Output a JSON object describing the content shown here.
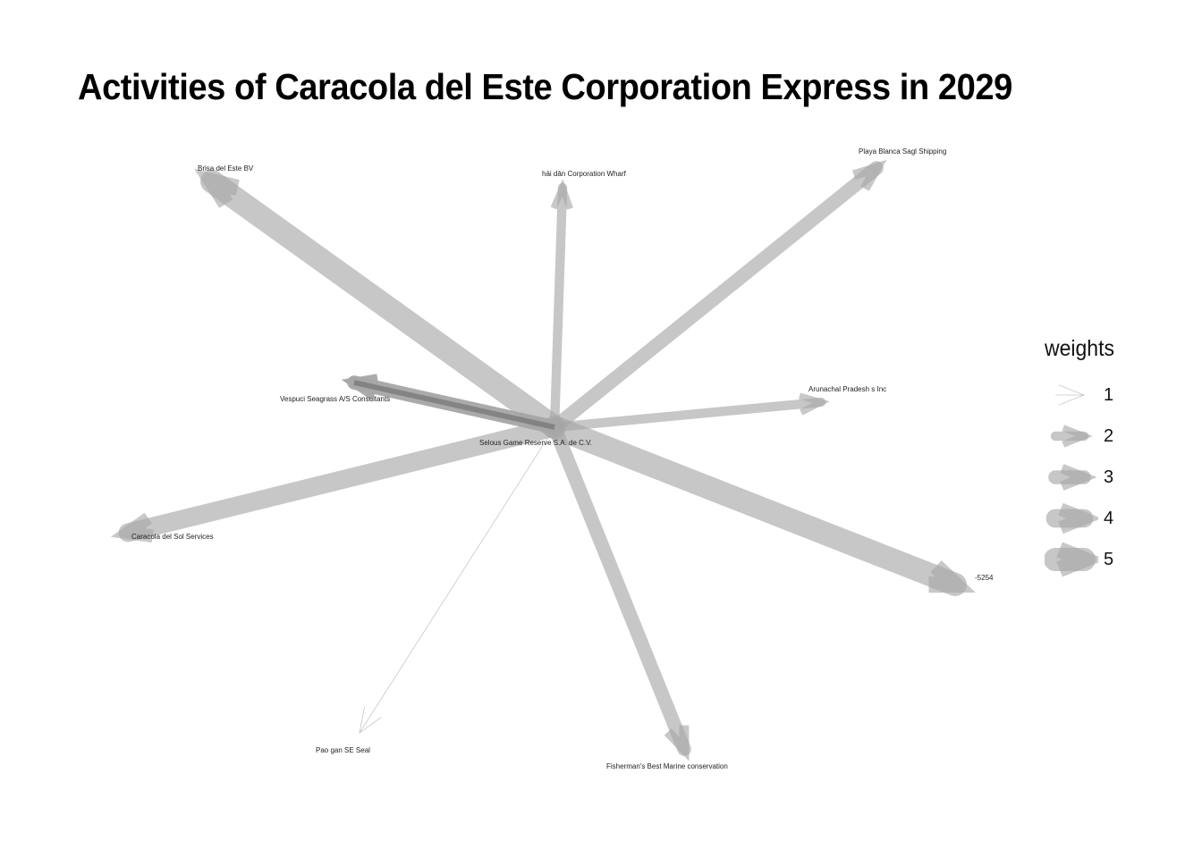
{
  "title": "Activities of Caracola del Este Corporation Express in 2029",
  "legend": {
    "title": "weights",
    "items": [
      {
        "label": "1",
        "weight": 1
      },
      {
        "label": "2",
        "weight": 2
      },
      {
        "label": "3",
        "weight": 3
      },
      {
        "label": "4",
        "weight": 4
      },
      {
        "label": "5",
        "weight": 5
      }
    ]
  },
  "graph": {
    "center": "Selous Game Reserve  S.A. de C.V.",
    "nodes": [
      {
        "id": "Selous Game Reserve  S.A. de C.V."
      },
      {
        "id": "Brisa del Este BV"
      },
      {
        "id": "hải dân Corporation Wharf"
      },
      {
        "id": "Playa Blanca Sagl Shipping"
      },
      {
        "id": "Arunachal Pradesh s Inc"
      },
      {
        "id": "Vespuci Seagrass A/S Consultants"
      },
      {
        "id": "Caracola del Sol Services"
      },
      {
        "id": "-5254"
      },
      {
        "id": "Pao gan SE Seal"
      },
      {
        "id": "Fisherman's Best Marine conservation"
      }
    ],
    "edges": [
      {
        "from": "Selous Game Reserve  S.A. de C.V.",
        "to": "Brisa del Este BV",
        "weight": 5
      },
      {
        "from": "Selous Game Reserve  S.A. de C.V.",
        "to": "-5254",
        "weight": 5
      },
      {
        "from": "Selous Game Reserve  S.A. de C.V.",
        "to": "Caracola del Sol Services",
        "weight": 4
      },
      {
        "from": "Selous Game Reserve  S.A. de C.V.",
        "to": "Playa Blanca Sagl Shipping",
        "weight": 3
      },
      {
        "from": "Selous Game Reserve  S.A. de C.V.",
        "to": "Fisherman's Best Marine conservation",
        "weight": 3
      },
      {
        "from": "Selous Game Reserve  S.A. de C.V.",
        "to": "Vespuci Seagrass A/S Consultants",
        "weight": 3
      },
      {
        "from": "Selous Game Reserve  S.A. de C.V.",
        "to": "Arunachal Pradesh s Inc",
        "weight": 2
      },
      {
        "from": "Selous Game Reserve  S.A. de C.V.",
        "to": "hải dân Corporation Wharf",
        "weight": 2
      },
      {
        "from": "Selous Game Reserve  S.A. de C.V.",
        "to": "Pao gan SE Seal",
        "weight": 1
      }
    ]
  },
  "colors": {
    "edge": "#a6a6a6",
    "edge_overlap": "#666666",
    "text": "#000000",
    "background": "#ffffff"
  }
}
